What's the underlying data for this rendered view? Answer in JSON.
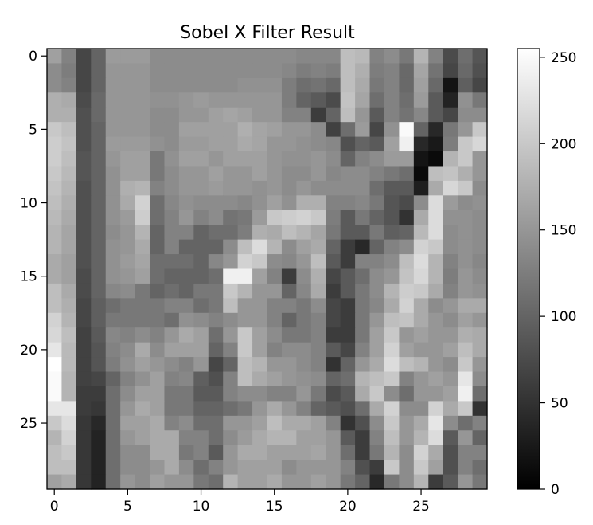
{
  "chart_data": {
    "type": "heatmap",
    "title": "Sobel X Filter Result",
    "xlabel": "",
    "ylabel": "",
    "colormap": "gray",
    "colormap_colors": [
      "#000000",
      "#ffffff"
    ],
    "rows": 30,
    "cols": 30,
    "x_ticks": [
      0,
      5,
      10,
      15,
      20,
      25
    ],
    "y_ticks": [
      0,
      5,
      10,
      15,
      20,
      25
    ],
    "colorbar": {
      "vmin": 0,
      "vmax": 255,
      "ticks": [
        0,
        50,
        100,
        150,
        200,
        250
      ]
    },
    "values": [
      [
        160,
        130,
        70,
        100,
        155,
        155,
        155,
        140,
        140,
        140,
        140,
        140,
        140,
        140,
        140,
        140,
        140,
        135,
        135,
        135,
        190,
        185,
        130,
        140,
        120,
        180,
        130,
        75,
        110,
        85
      ],
      [
        140,
        125,
        70,
        100,
        150,
        150,
        150,
        140,
        140,
        140,
        140,
        140,
        140,
        140,
        140,
        140,
        135,
        125,
        130,
        125,
        190,
        175,
        125,
        130,
        105,
        165,
        115,
        70,
        105,
        80
      ],
      [
        140,
        130,
        70,
        100,
        150,
        150,
        150,
        140,
        140,
        140,
        140,
        140,
        140,
        145,
        145,
        145,
        125,
        110,
        115,
        105,
        190,
        170,
        120,
        130,
        105,
        160,
        105,
        20,
        95,
        70
      ],
      [
        175,
        170,
        75,
        105,
        150,
        150,
        150,
        145,
        145,
        150,
        155,
        150,
        150,
        150,
        150,
        150,
        125,
        100,
        90,
        75,
        195,
        165,
        110,
        130,
        110,
        155,
        90,
        35,
        145,
        120
      ],
      [
        175,
        175,
        80,
        105,
        150,
        150,
        150,
        140,
        140,
        150,
        150,
        160,
        165,
        160,
        150,
        150,
        130,
        130,
        60,
        100,
        190,
        150,
        90,
        130,
        115,
        135,
        90,
        70,
        140,
        140
      ],
      [
        200,
        190,
        80,
        100,
        150,
        150,
        150,
        140,
        140,
        160,
        160,
        160,
        160,
        175,
        165,
        160,
        150,
        150,
        140,
        65,
        110,
        155,
        70,
        145,
        250,
        100,
        40,
        120,
        150,
        200
      ],
      [
        205,
        195,
        80,
        100,
        155,
        155,
        155,
        145,
        140,
        155,
        155,
        160,
        160,
        170,
        165,
        150,
        150,
        145,
        140,
        135,
        80,
        100,
        90,
        160,
        240,
        40,
        25,
        125,
        200,
        215
      ],
      [
        205,
        190,
        85,
        100,
        150,
        160,
        160,
        120,
        145,
        160,
        160,
        150,
        160,
        160,
        160,
        150,
        145,
        145,
        150,
        140,
        100,
        130,
        140,
        155,
        155,
        20,
        10,
        180,
        200,
        150
      ],
      [
        200,
        185,
        85,
        100,
        145,
        160,
        160,
        120,
        140,
        150,
        150,
        160,
        150,
        150,
        160,
        150,
        140,
        140,
        150,
        135,
        140,
        140,
        130,
        120,
        110,
        10,
        190,
        195,
        175,
        150
      ],
      [
        195,
        180,
        80,
        100,
        145,
        175,
        180,
        130,
        140,
        150,
        150,
        155,
        150,
        150,
        145,
        150,
        140,
        150,
        140,
        140,
        140,
        140,
        110,
        90,
        90,
        30,
        170,
        215,
        200,
        140
      ],
      [
        190,
        175,
        80,
        100,
        145,
        170,
        210,
        110,
        135,
        145,
        140,
        140,
        140,
        135,
        145,
        160,
        145,
        175,
        175,
        130,
        130,
        135,
        120,
        85,
        75,
        140,
        220,
        155,
        140,
        145
      ],
      [
        185,
        170,
        80,
        100,
        145,
        155,
        205,
        110,
        130,
        150,
        130,
        140,
        115,
        120,
        155,
        200,
        205,
        210,
        200,
        125,
        90,
        120,
        100,
        85,
        50,
        170,
        220,
        145,
        145,
        140
      ],
      [
        180,
        165,
        80,
        100,
        140,
        150,
        180,
        100,
        130,
        130,
        100,
        110,
        110,
        125,
        175,
        170,
        190,
        180,
        165,
        120,
        90,
        90,
        120,
        95,
        100,
        185,
        220,
        140,
        145,
        140
      ],
      [
        180,
        165,
        80,
        100,
        145,
        150,
        170,
        100,
        130,
        100,
        100,
        100,
        140,
        190,
        220,
        180,
        140,
        160,
        170,
        100,
        60,
        40,
        100,
        130,
        140,
        210,
        200,
        140,
        145,
        140
      ],
      [
        170,
        160,
        80,
        100,
        145,
        155,
        165,
        110,
        110,
        110,
        100,
        135,
        150,
        210,
        200,
        140,
        135,
        150,
        190,
        90,
        60,
        130,
        130,
        140,
        190,
        220,
        180,
        130,
        145,
        135
      ],
      [
        170,
        160,
        75,
        100,
        145,
        150,
        160,
        110,
        100,
        100,
        100,
        110,
        240,
        240,
        160,
        130,
        60,
        140,
        175,
        70,
        90,
        110,
        140,
        150,
        195,
        215,
        180,
        125,
        150,
        140
      ],
      [
        190,
        170,
        75,
        100,
        135,
        140,
        120,
        100,
        110,
        100,
        120,
        120,
        200,
        180,
        150,
        150,
        100,
        135,
        170,
        60,
        90,
        120,
        140,
        180,
        205,
        200,
        170,
        130,
        150,
        145
      ],
      [
        190,
        175,
        70,
        95,
        110,
        120,
        120,
        120,
        130,
        130,
        110,
        120,
        190,
        150,
        150,
        130,
        130,
        120,
        140,
        70,
        60,
        120,
        135,
        170,
        210,
        170,
        140,
        150,
        170,
        170
      ],
      [
        210,
        180,
        70,
        95,
        120,
        120,
        120,
        120,
        110,
        145,
        140,
        130,
        140,
        150,
        150,
        130,
        100,
        120,
        130,
        70,
        60,
        120,
        150,
        190,
        195,
        170,
        150,
        140,
        160,
        150
      ],
      [
        215,
        190,
        65,
        90,
        135,
        130,
        140,
        130,
        150,
        170,
        160,
        110,
        150,
        200,
        160,
        140,
        120,
        120,
        130,
        60,
        60,
        120,
        160,
        200,
        150,
        160,
        150,
        150,
        175,
        170
      ],
      [
        230,
        185,
        65,
        85,
        130,
        140,
        170,
        140,
        160,
        160,
        160,
        100,
        130,
        200,
        160,
        130,
        140,
        140,
        130,
        90,
        70,
        130,
        160,
        210,
        160,
        150,
        150,
        160,
        190,
        170
      ],
      [
        255,
        185,
        65,
        85,
        125,
        145,
        160,
        150,
        140,
        130,
        150,
        70,
        100,
        190,
        180,
        150,
        150,
        140,
        130,
        50,
        100,
        150,
        170,
        220,
        190,
        180,
        150,
        140,
        200,
        150
      ],
      [
        250,
        180,
        65,
        70,
        100,
        130,
        145,
        160,
        130,
        135,
        95,
        80,
        130,
        190,
        170,
        160,
        150,
        145,
        140,
        100,
        110,
        180,
        190,
        200,
        130,
        150,
        160,
        150,
        230,
        140
      ],
      [
        250,
        180,
        60,
        60,
        110,
        140,
        160,
        160,
        120,
        120,
        90,
        90,
        130,
        140,
        140,
        130,
        130,
        150,
        120,
        75,
        90,
        170,
        200,
        140,
        110,
        150,
        150,
        160,
        240,
        110
      ],
      [
        230,
        230,
        60,
        55,
        110,
        150,
        170,
        160,
        120,
        120,
        100,
        100,
        110,
        120,
        150,
        170,
        150,
        130,
        100,
        90,
        80,
        110,
        170,
        210,
        140,
        140,
        210,
        170,
        200,
        50
      ],
      [
        200,
        220,
        55,
        40,
        110,
        160,
        160,
        170,
        130,
        140,
        110,
        110,
        150,
        150,
        160,
        190,
        170,
        170,
        160,
        130,
        50,
        80,
        140,
        200,
        150,
        170,
        230,
        140,
        110,
        130
      ],
      [
        180,
        210,
        55,
        35,
        110,
        150,
        160,
        170,
        170,
        130,
        130,
        110,
        140,
        155,
        170,
        180,
        180,
        160,
        160,
        150,
        90,
        60,
        130,
        190,
        150,
        180,
        220,
        90,
        150,
        100
      ],
      [
        190,
        200,
        55,
        35,
        110,
        140,
        140,
        170,
        170,
        120,
        130,
        90,
        150,
        170,
        170,
        160,
        160,
        160,
        165,
        150,
        110,
        60,
        120,
        180,
        140,
        210,
        170,
        80,
        130,
        130
      ],
      [
        190,
        190,
        55,
        35,
        110,
        140,
        140,
        150,
        170,
        140,
        110,
        130,
        150,
        160,
        160,
        160,
        140,
        150,
        150,
        150,
        130,
        80,
        60,
        200,
        140,
        200,
        160,
        80,
        130,
        110
      ],
      [
        160,
        170,
        55,
        35,
        110,
        150,
        140,
        160,
        150,
        150,
        120,
        110,
        180,
        160,
        160,
        170,
        150,
        150,
        160,
        150,
        120,
        100,
        40,
        120,
        140,
        180,
        60,
        90,
        150,
        120
      ]
    ]
  }
}
